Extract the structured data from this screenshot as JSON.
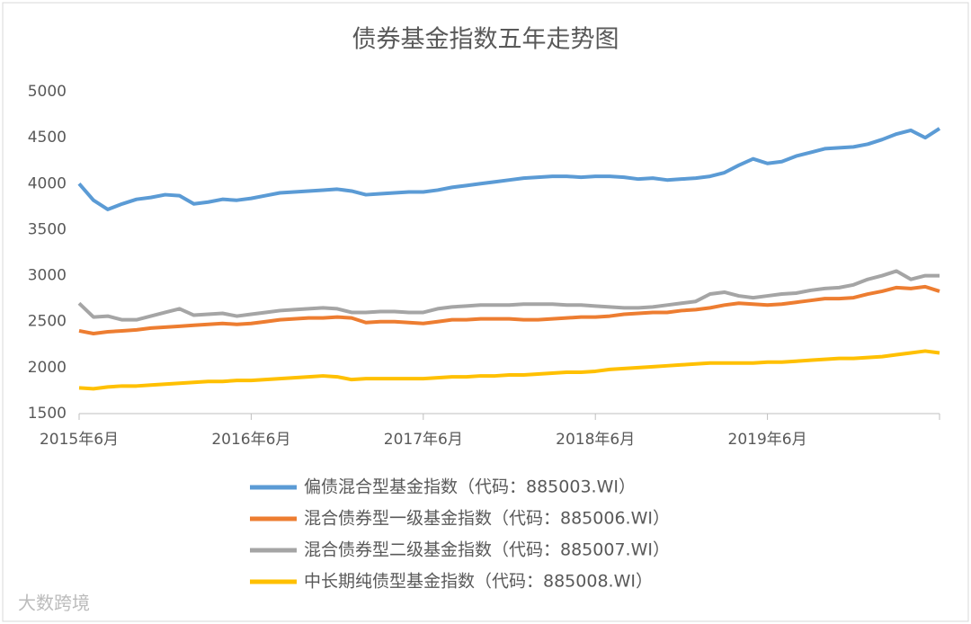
{
  "chart_data": {
    "type": "line",
    "title": "债券基金指数五年走势图",
    "categories": [
      "2015年6月",
      null,
      null,
      null,
      null,
      null,
      null,
      null,
      null,
      null,
      null,
      null,
      "2016年6月",
      null,
      null,
      null,
      null,
      null,
      null,
      null,
      null,
      null,
      null,
      null,
      "2017年6月",
      null,
      null,
      null,
      null,
      null,
      null,
      null,
      null,
      null,
      null,
      null,
      "2018年6月",
      null,
      null,
      null,
      null,
      null,
      null,
      null,
      null,
      null,
      null,
      null,
      "2019年6月",
      null,
      null,
      null,
      null,
      null,
      null,
      null,
      null,
      null,
      null,
      null,
      null
    ],
    "series": [
      {
        "name": "偏债混合型基金指数（代码：885003.WI）",
        "color": "#5b9bd5",
        "values": [
          4000,
          3820,
          3720,
          3780,
          3830,
          3850,
          3880,
          3870,
          3780,
          3800,
          3830,
          3820,
          3840,
          3870,
          3900,
          3910,
          3920,
          3930,
          3940,
          3920,
          3880,
          3890,
          3900,
          3910,
          3910,
          3930,
          3960,
          3980,
          4000,
          4020,
          4040,
          4060,
          4070,
          4080,
          4080,
          4070,
          4080,
          4080,
          4070,
          4050,
          4060,
          4040,
          4050,
          4060,
          4080,
          4120,
          4200,
          4270,
          4220,
          4240,
          4300,
          4340,
          4380,
          4390,
          4400,
          4430,
          4480,
          4540,
          4580,
          4500,
          4600
        ]
      },
      {
        "name": "混合债券型一级基金指数（代码：885006.WI）",
        "color": "#ed7d31",
        "values": [
          2400,
          2370,
          2390,
          2400,
          2410,
          2430,
          2440,
          2450,
          2460,
          2470,
          2480,
          2470,
          2480,
          2500,
          2520,
          2530,
          2540,
          2540,
          2550,
          2540,
          2490,
          2500,
          2500,
          2490,
          2480,
          2500,
          2520,
          2520,
          2530,
          2530,
          2530,
          2520,
          2520,
          2530,
          2540,
          2550,
          2550,
          2560,
          2580,
          2590,
          2600,
          2600,
          2620,
          2630,
          2650,
          2680,
          2700,
          2690,
          2680,
          2690,
          2710,
          2730,
          2750,
          2750,
          2760,
          2800,
          2830,
          2870,
          2860,
          2880,
          2830
        ]
      },
      {
        "name": "混合债券型二级基金指数（代码：885007.WI）",
        "color": "#a5a5a5",
        "values": [
          2700,
          2550,
          2560,
          2520,
          2520,
          2560,
          2600,
          2640,
          2570,
          2580,
          2590,
          2560,
          2580,
          2600,
          2620,
          2630,
          2640,
          2650,
          2640,
          2600,
          2600,
          2610,
          2610,
          2600,
          2600,
          2640,
          2660,
          2670,
          2680,
          2680,
          2680,
          2690,
          2690,
          2690,
          2680,
          2680,
          2670,
          2660,
          2650,
          2650,
          2660,
          2680,
          2700,
          2720,
          2800,
          2820,
          2780,
          2760,
          2780,
          2800,
          2810,
          2840,
          2860,
          2870,
          2900,
          2960,
          3000,
          3050,
          2960,
          3000,
          3000
        ]
      },
      {
        "name": "中长期纯债型基金指数（代码：885008.WI）",
        "color": "#ffc000",
        "values": [
          1780,
          1770,
          1790,
          1800,
          1800,
          1810,
          1820,
          1830,
          1840,
          1850,
          1850,
          1860,
          1860,
          1870,
          1880,
          1890,
          1900,
          1910,
          1900,
          1870,
          1880,
          1880,
          1880,
          1880,
          1880,
          1890,
          1900,
          1900,
          1910,
          1910,
          1920,
          1920,
          1930,
          1940,
          1950,
          1950,
          1960,
          1980,
          1990,
          2000,
          2010,
          2020,
          2030,
          2040,
          2050,
          2050,
          2050,
          2050,
          2060,
          2060,
          2070,
          2080,
          2090,
          2100,
          2100,
          2110,
          2120,
          2140,
          2160,
          2180,
          2160
        ]
      }
    ],
    "ylim": [
      1500,
      5000
    ],
    "yticks": [
      1500,
      2000,
      2500,
      3000,
      3500,
      4000,
      4500,
      5000
    ],
    "grid": false,
    "legend": "bottom",
    "watermark": "大数跨境"
  }
}
